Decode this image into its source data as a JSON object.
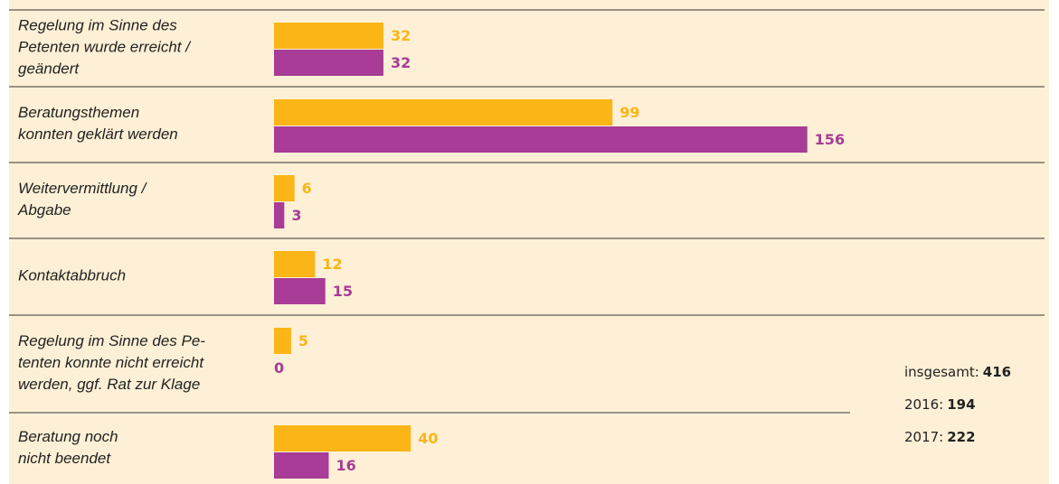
{
  "chart_data": {
    "type": "bar",
    "orientation": "horizontal",
    "categories": [
      [
        "Regelung im Sinne des",
        "Petenten wurde erreicht /",
        "geändert"
      ],
      [
        "Beratungsthemen",
        "konnten geklärt werden"
      ],
      [
        "Weitervermittlung /",
        "Abgabe"
      ],
      [
        "Kontaktabbruch"
      ],
      [
        "Regelung im Sinne des Pe-",
        "tenten konnte nicht erreicht",
        "werden, ggf. Rat zur Klage"
      ],
      [
        "Beratung noch",
        "nicht beendet"
      ]
    ],
    "series": [
      {
        "color": "#fbb516",
        "values": [
          32,
          99,
          6,
          12,
          5,
          40
        ]
      },
      {
        "color": "#a83c96",
        "values": [
          32,
          156,
          3,
          15,
          0,
          16
        ]
      }
    ],
    "summary": [
      {
        "label": "insgesamt:",
        "value": 416
      },
      {
        "label": "2016:",
        "value": 194
      },
      {
        "label": "2017:",
        "value": 222
      }
    ]
  }
}
